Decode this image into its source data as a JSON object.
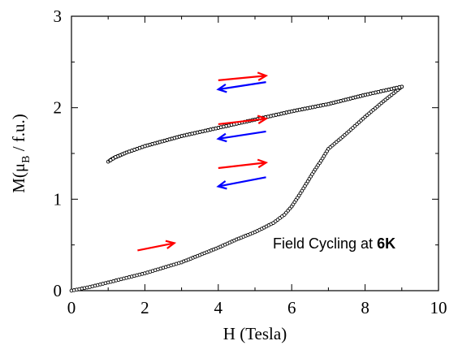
{
  "chart_data": {
    "type": "scatter",
    "title": "",
    "xlabel": "H (Tesla)",
    "ylabel_main": "M(μ",
    "ylabel_sub": "B",
    "ylabel_rest": " / f.u.)",
    "xlim": [
      0,
      10
    ],
    "ylim": [
      0,
      3
    ],
    "xticks": [
      "0",
      "2",
      "4",
      "6",
      "8",
      "10"
    ],
    "yticks": [
      "0",
      "1",
      "2",
      "3"
    ],
    "grid": false,
    "annotation_prefix": "Field Cycling at ",
    "annotation_bold": "6K",
    "marker": "open-circle",
    "marker_color": "#000000",
    "series": [
      {
        "segments": [
          [
            [
              0,
              0
            ],
            [
              0.5,
              0.04
            ],
            [
              1,
              0.09
            ],
            [
              1.5,
              0.14
            ],
            [
              2,
              0.19
            ],
            [
              2.5,
              0.25
            ],
            [
              3,
              0.31
            ],
            [
              3.5,
              0.39
            ],
            [
              4,
              0.47
            ],
            [
              4.5,
              0.56
            ],
            [
              5,
              0.64
            ],
            [
              5.5,
              0.74
            ],
            [
              5.8,
              0.83
            ],
            [
              6,
              0.92
            ]
          ],
          [
            [
              6,
              0.92
            ],
            [
              6.2,
              1.04
            ],
            [
              6.4,
              1.17
            ],
            [
              6.6,
              1.3
            ],
            [
              6.8,
              1.42
            ],
            [
              7,
              1.55
            ]
          ],
          [
            [
              7,
              1.55
            ],
            [
              7.5,
              1.72
            ],
            [
              8,
              1.9
            ],
            [
              8.5,
              2.07
            ],
            [
              9,
              2.23
            ]
          ],
          [
            [
              9,
              2.23
            ],
            [
              8,
              2.14
            ],
            [
              7,
              2.04
            ],
            [
              6,
              1.96
            ],
            [
              5,
              1.87
            ],
            [
              4,
              1.78
            ],
            [
              3,
              1.69
            ],
            [
              2,
              1.58
            ],
            [
              1.5,
              1.51
            ],
            [
              1.2,
              1.46
            ],
            [
              1,
              1.41
            ],
            [
              1.1,
              1.44
            ],
            [
              1.5,
              1.51
            ],
            [
              2,
              1.58
            ],
            [
              3,
              1.69
            ],
            [
              4,
              1.78
            ],
            [
              5,
              1.87
            ],
            [
              6,
              1.96
            ],
            [
              7,
              2.04
            ],
            [
              8,
              2.14
            ],
            [
              9,
              2.23
            ]
          ],
          [
            [
              9,
              2.23
            ],
            [
              8,
              2.14
            ],
            [
              7,
              2.04
            ],
            [
              6,
              1.96
            ],
            [
              5,
              1.87
            ],
            [
              4,
              1.78
            ],
            [
              3,
              1.69
            ],
            [
              2,
              1.58
            ],
            [
              1.5,
              1.51
            ],
            [
              1.2,
              1.46
            ],
            [
              1,
              1.41
            ]
          ]
        ]
      }
    ],
    "arrows": [
      {
        "from": [
          4.0,
          2.3
        ],
        "to": [
          5.3,
          2.35
        ],
        "color": "#ff0000"
      },
      {
        "from": [
          5.3,
          2.28
        ],
        "to": [
          4.0,
          2.2
        ],
        "color": "#0000ff"
      },
      {
        "from": [
          4.0,
          1.82
        ],
        "to": [
          5.3,
          1.88
        ],
        "color": "#ff0000"
      },
      {
        "from": [
          5.3,
          1.74
        ],
        "to": [
          4.0,
          1.66
        ],
        "color": "#0000ff"
      },
      {
        "from": [
          4.0,
          1.34
        ],
        "to": [
          5.3,
          1.4
        ],
        "color": "#ff0000"
      },
      {
        "from": [
          5.3,
          1.24
        ],
        "to": [
          4.0,
          1.14
        ],
        "color": "#0000ff"
      },
      {
        "from": [
          1.8,
          0.44
        ],
        "to": [
          2.8,
          0.52
        ],
        "color": "#ff0000"
      }
    ]
  }
}
